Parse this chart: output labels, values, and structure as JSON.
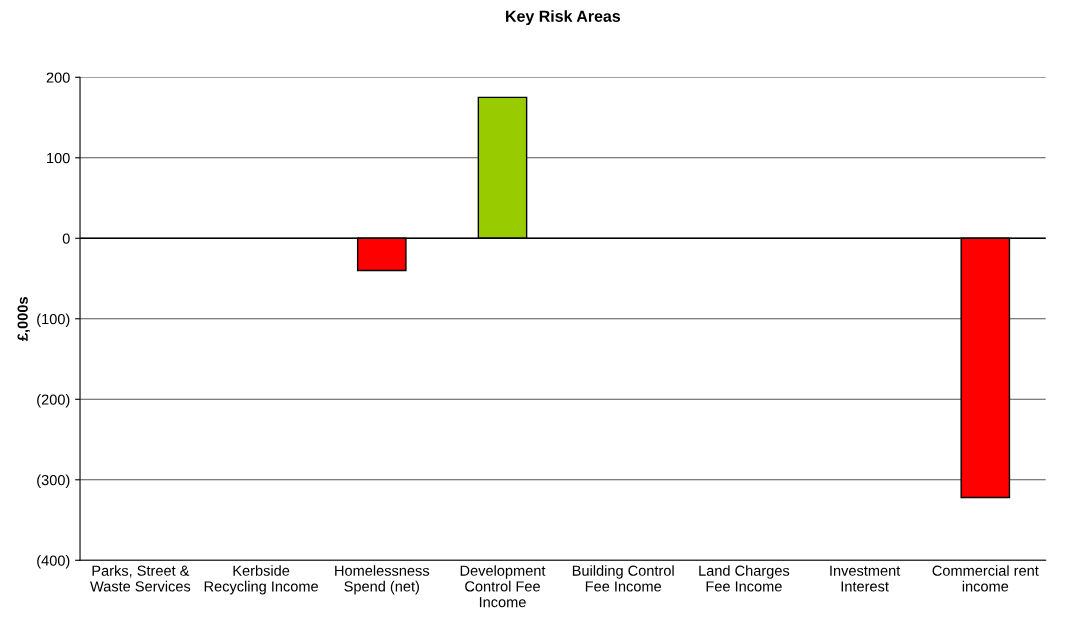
{
  "chart_data": {
    "type": "bar",
    "title": "Key Risk Areas",
    "ylabel": "£,000s",
    "categories": [
      "Parks, Street &\nWaste Services",
      "Kerbside\nRecycling Income",
      "Homelessness\nSpend (net)",
      "Development\nControl Fee\nIncome",
      "Building Control\nFee Income",
      "Land Charges\nFee Income",
      "Investment\nInterest",
      "Commercial rent\nincome"
    ],
    "values": [
      null,
      null,
      -40,
      175,
      null,
      null,
      null,
      -322
    ],
    "colors": [
      null,
      null,
      "#ff0000",
      "#99cc00",
      null,
      null,
      null,
      "#ff0000"
    ],
    "ylim": [
      -400,
      200
    ],
    "yticks": [
      {
        "value": -400,
        "label": "(400)"
      },
      {
        "value": -300,
        "label": "(300)"
      },
      {
        "value": -200,
        "label": "(200)"
      },
      {
        "value": -100,
        "label": "(100)"
      },
      0,
      100,
      200
    ],
    "grid": "y"
  }
}
